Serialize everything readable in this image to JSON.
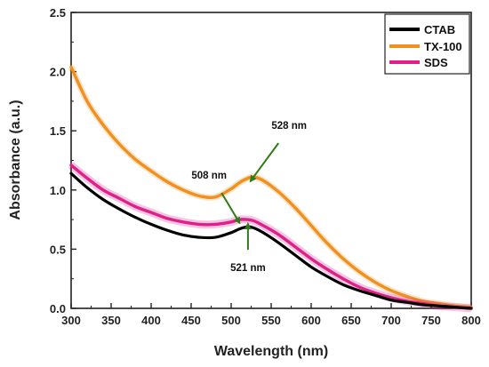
{
  "chart_data": {
    "type": "line",
    "xlabel": "Wavelength (nm)",
    "ylabel": "Absorbance (a.u.)",
    "xlim": [
      300,
      800
    ],
    "ylim": [
      0.0,
      2.5
    ],
    "grid": false,
    "legend_position": "top-right",
    "x_ticks": [
      300,
      350,
      400,
      450,
      500,
      550,
      600,
      650,
      700,
      750,
      800
    ],
    "x_tick_labels": [
      "300",
      "350",
      "400",
      "450",
      "500",
      "550",
      "600",
      "650",
      "700",
      "750",
      "800"
    ],
    "y_ticks": [
      0.0,
      0.5,
      1.0,
      1.5,
      2.0,
      2.5
    ],
    "y_tick_labels": [
      "0.0",
      "0.5",
      "1.0",
      "1.5",
      "2.0",
      "2.5"
    ],
    "x": [
      300,
      320,
      340,
      360,
      380,
      400,
      420,
      440,
      460,
      480,
      500,
      510,
      521,
      528,
      540,
      560,
      580,
      600,
      620,
      640,
      660,
      680,
      700,
      720,
      740,
      760,
      780,
      800
    ],
    "series": [
      {
        "name": "CTAB",
        "color": "#000000",
        "values": [
          1.14,
          1.02,
          0.92,
          0.84,
          0.77,
          0.71,
          0.66,
          0.62,
          0.6,
          0.6,
          0.64,
          0.67,
          0.69,
          0.68,
          0.64,
          0.55,
          0.45,
          0.35,
          0.27,
          0.2,
          0.15,
          0.11,
          0.07,
          0.05,
          0.03,
          0.02,
          0.01,
          0.0
        ]
      },
      {
        "name": "TX-100",
        "color": "#f0901f",
        "values": [
          2.04,
          1.75,
          1.55,
          1.39,
          1.26,
          1.16,
          1.07,
          1.0,
          0.95,
          0.94,
          1.01,
          1.06,
          1.1,
          1.11,
          1.08,
          0.98,
          0.85,
          0.7,
          0.55,
          0.42,
          0.31,
          0.22,
          0.15,
          0.1,
          0.06,
          0.04,
          0.02,
          0.01
        ]
      },
      {
        "name": "SDS",
        "color": "#e0208a",
        "values": [
          1.21,
          1.1,
          1.0,
          0.93,
          0.86,
          0.81,
          0.76,
          0.73,
          0.71,
          0.71,
          0.73,
          0.75,
          0.75,
          0.74,
          0.7,
          0.62,
          0.52,
          0.42,
          0.33,
          0.25,
          0.18,
          0.13,
          0.09,
          0.06,
          0.04,
          0.02,
          0.01,
          0.0
        ]
      }
    ],
    "annotations": [
      {
        "text": "508 nm",
        "x": 508,
        "y": 0.75
      },
      {
        "text": "528 nm",
        "x": 528,
        "y": 1.11
      },
      {
        "text": "521 nm",
        "x": 521,
        "y": 0.69
      }
    ],
    "arrow_color": "#2e7d16"
  }
}
